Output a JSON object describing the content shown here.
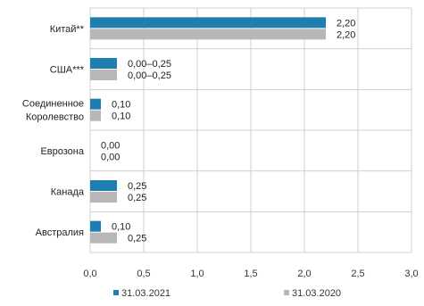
{
  "chart_data": {
    "type": "bar",
    "orientation": "horizontal",
    "categories": [
      [
        "Китай**"
      ],
      [
        "США***"
      ],
      [
        "Соединенное",
        "Королевство"
      ],
      [
        "Еврозона"
      ],
      [
        "Канада"
      ],
      [
        "Австралия"
      ]
    ],
    "series": [
      {
        "name": "31.03.2021",
        "color": "#1f7eb0",
        "values": [
          2.2,
          0.25,
          0.1,
          0.0,
          0.25,
          0.1
        ],
        "labels": [
          "2,20",
          "0,00–0,25",
          "0,10",
          "0,00",
          "0,25",
          "0,10"
        ]
      },
      {
        "name": "31.03.2020",
        "color": "#b7b7b7",
        "values": [
          2.2,
          0.25,
          0.1,
          0.0,
          0.25,
          0.25
        ],
        "labels": [
          "2,20",
          "0,00–0,25",
          "0,10",
          "0,00",
          "0,25",
          "0,25"
        ]
      }
    ],
    "xlim": [
      0,
      3.0
    ],
    "xticks": [
      0,
      0.5,
      1.0,
      1.5,
      2.0,
      2.5,
      3.0
    ],
    "xtick_labels": [
      "0,0",
      "0,5",
      "1,0",
      "1,5",
      "2,0",
      "2,5",
      "3,0"
    ],
    "grid": true,
    "legend_position": "bottom"
  }
}
